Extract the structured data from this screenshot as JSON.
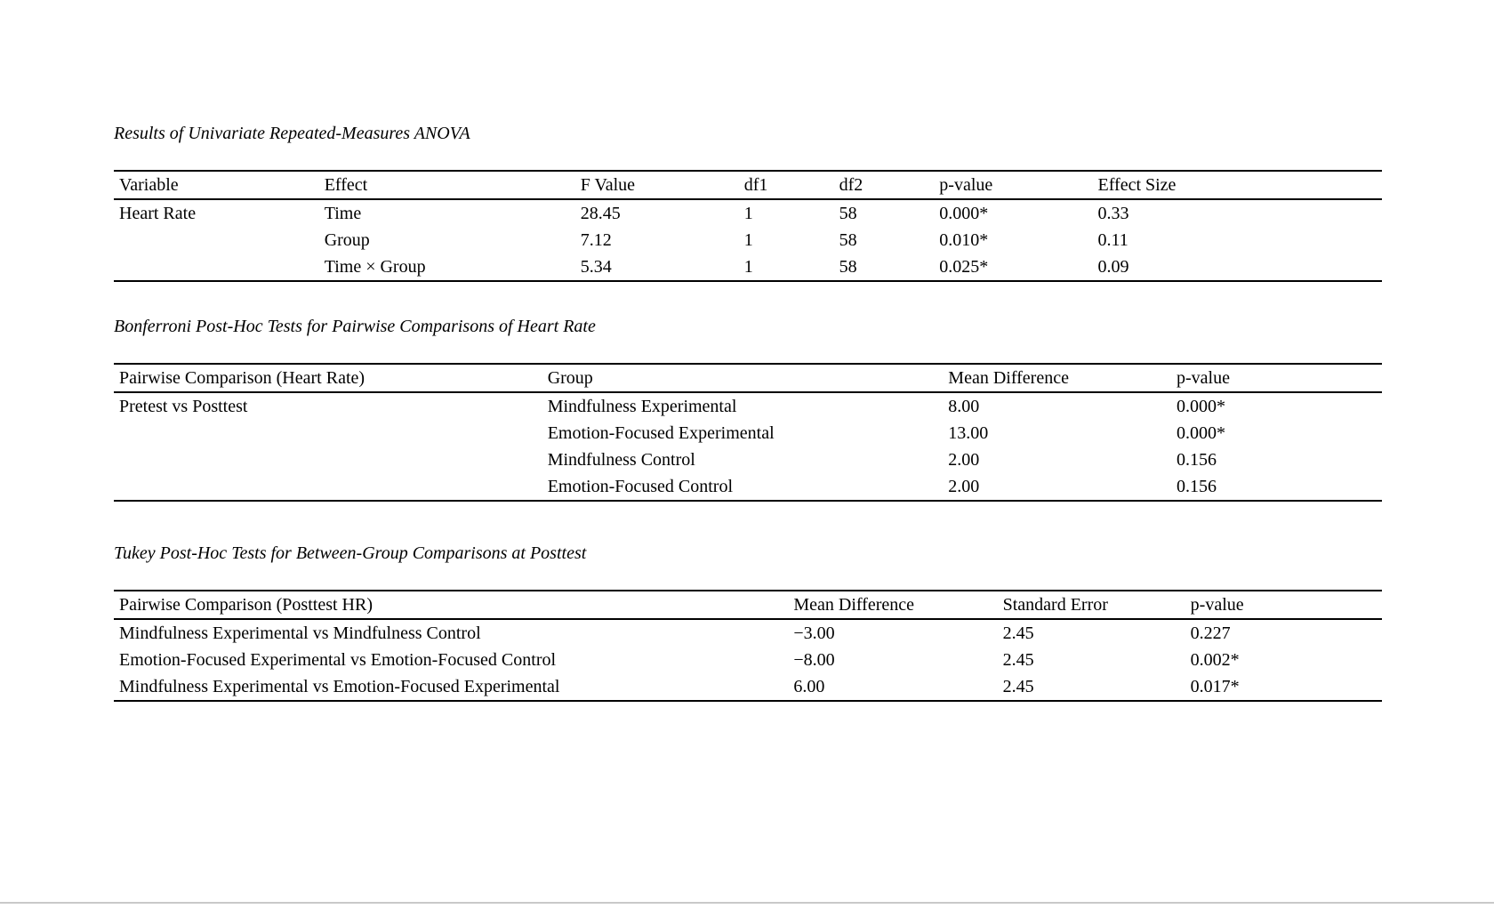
{
  "page": {
    "background": "#ffffff",
    "divider_color": "#c9c9c9",
    "text_color": "#000000"
  },
  "tables": [
    {
      "title": "Results of Univariate Repeated-Measures ANOVA",
      "columns": [
        "Variable",
        "Effect",
        "F Value",
        "df1",
        "df2",
        "p-value",
        "Effect Size"
      ],
      "rows": [
        [
          "Heart Rate",
          "Time",
          "28.45",
          "1",
          "58",
          "0.000*",
          "0.33"
        ],
        [
          "",
          "Group",
          "7.12",
          "1",
          "58",
          "0.010*",
          "0.11"
        ],
        [
          "",
          "Time × Group",
          "5.34",
          "1",
          "58",
          "0.025*",
          "0.09"
        ]
      ]
    },
    {
      "title": "Bonferroni Post-Hoc Tests for Pairwise Comparisons of Heart Rate",
      "columns": [
        "Pairwise Comparison (Heart Rate)",
        "Group",
        "Mean Difference",
        "p-value"
      ],
      "rows": [
        [
          "Pretest vs Posttest",
          "Mindfulness Experimental",
          "8.00",
          "0.000*"
        ],
        [
          "",
          "Emotion-Focused Experimental",
          "13.00",
          "0.000*"
        ],
        [
          "",
          "Mindfulness Control",
          "2.00",
          "0.156"
        ],
        [
          "",
          "Emotion-Focused Control",
          "2.00",
          "0.156"
        ]
      ]
    },
    {
      "title": "Tukey Post-Hoc Tests for Between-Group Comparisons at Posttest",
      "columns": [
        "Pairwise Comparison (Posttest HR)",
        "Mean Difference",
        "Standard Error",
        "p-value"
      ],
      "rows": [
        [
          "Mindfulness Experimental vs Mindfulness Control",
          "−3.00",
          "2.45",
          "0.227"
        ],
        [
          "Emotion-Focused Experimental vs Emotion-Focused Control",
          "−8.00",
          "2.45",
          "0.002*"
        ],
        [
          "Mindfulness Experimental vs Emotion-Focused Experimental",
          "6.00",
          "2.45",
          "0.017*"
        ]
      ]
    }
  ]
}
